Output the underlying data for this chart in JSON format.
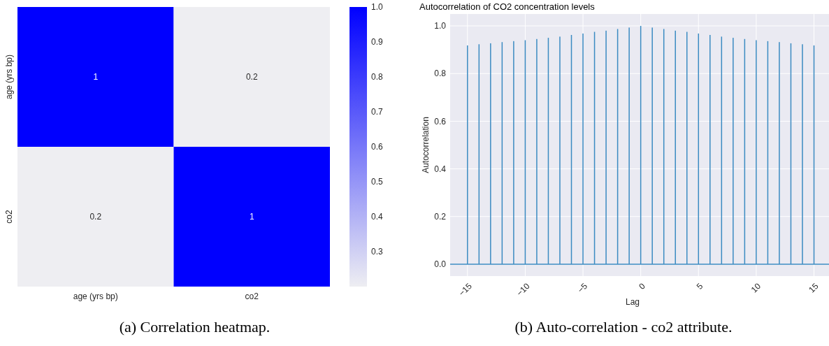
{
  "chart_data": [
    {
      "type": "heatmap",
      "categories": [
        "age (yrs bp)",
        "co2"
      ],
      "y_categories": [
        "age (yrs bp)",
        "co2"
      ],
      "cells": [
        [
          1,
          0.2
        ],
        [
          0.2,
          1
        ]
      ],
      "data_labels": true,
      "clim": [
        0.2,
        1.0
      ],
      "cticks": [
        {
          "value": 0.3,
          "label": "0.3"
        },
        {
          "value": 0.4,
          "label": "0.4"
        },
        {
          "value": 0.5,
          "label": "0.5"
        },
        {
          "value": 0.6,
          "label": "0.6"
        },
        {
          "value": 0.7,
          "label": "0.7"
        },
        {
          "value": 0.8,
          "label": "0.8"
        },
        {
          "value": 0.9,
          "label": "0.9"
        },
        {
          "value": 1.0,
          "label": "1.0"
        }
      ],
      "colors": [
        "#eeeef2",
        "#0000ff"
      ],
      "annotations": [
        "(a) Correlation heatmap."
      ]
    },
    {
      "type": "bar",
      "title": "Autocorrelation of CO2 concentration levels",
      "xlabel": "Lag",
      "ylabel": "Autocorrelation",
      "x": [
        -15,
        -14,
        -13,
        -12,
        -11,
        -10,
        -9,
        -8,
        -7,
        -6,
        -5,
        -4,
        -3,
        -2,
        -1,
        0,
        1,
        2,
        3,
        4,
        5,
        6,
        7,
        8,
        9,
        10,
        11,
        12,
        13,
        14,
        15
      ],
      "values": [
        0.918,
        0.923,
        0.927,
        0.932,
        0.936,
        0.94,
        0.945,
        0.95,
        0.955,
        0.962,
        0.968,
        0.975,
        0.98,
        0.987,
        0.993,
        1.0,
        0.993,
        0.987,
        0.98,
        0.975,
        0.968,
        0.962,
        0.955,
        0.95,
        0.945,
        0.94,
        0.936,
        0.932,
        0.927,
        0.923,
        0.918
      ],
      "color": "#3b8bc2",
      "xlim": [
        -16.5,
        16.3
      ],
      "ylim": [
        -0.05,
        1.05
      ],
      "xticks": [
        {
          "value": -15,
          "label": "−15"
        },
        {
          "value": -10,
          "label": "−10"
        },
        {
          "value": -5,
          "label": "−5"
        },
        0,
        5,
        10,
        15
      ],
      "yticks": [
        {
          "value": 0,
          "label": "0.0"
        },
        {
          "value": 0.2,
          "label": "0.2"
        },
        {
          "value": 0.4,
          "label": "0.4"
        },
        {
          "value": 0.6,
          "label": "0.6"
        },
        {
          "value": 0.8,
          "label": "0.8"
        },
        {
          "value": 1.0,
          "label": "1.0"
        }
      ],
      "grid": true,
      "ref_lines": [
        {
          "axis": "y",
          "value": 0,
          "color": "#3b8bc2"
        }
      ],
      "annotations": [
        "(b) Auto-correlation - co2 attribute."
      ]
    }
  ]
}
